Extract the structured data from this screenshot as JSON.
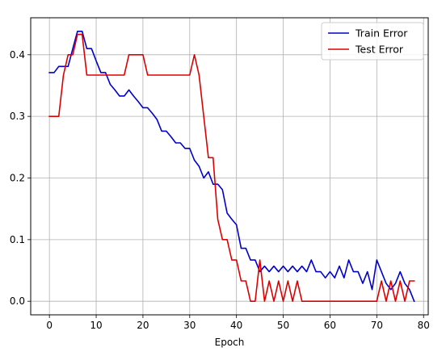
{
  "chart_data": {
    "type": "line",
    "title": "",
    "xlabel": "Epoch",
    "ylabel": "",
    "xlim": [
      -4,
      81
    ],
    "ylim": [
      -0.022,
      0.46
    ],
    "xticks": [
      0,
      10,
      20,
      30,
      40,
      50,
      60,
      70,
      80
    ],
    "yticks": [
      0.0,
      0.1,
      0.2,
      0.3,
      0.4
    ],
    "xtick_labels": [
      "0",
      "10",
      "20",
      "30",
      "40",
      "50",
      "60",
      "70",
      "80"
    ],
    "ytick_labels": [
      "0.0",
      "0.1",
      "0.2",
      "0.3",
      "0.4"
    ],
    "grid": true,
    "legend_position": "top-right",
    "series": [
      {
        "name": "Train Error",
        "color": "#0000cc",
        "x": [
          0,
          1,
          2,
          3,
          4,
          5,
          6,
          7,
          8,
          9,
          10,
          11,
          12,
          13,
          14,
          15,
          16,
          17,
          18,
          19,
          20,
          21,
          22,
          23,
          24,
          25,
          26,
          27,
          28,
          29,
          30,
          31,
          32,
          33,
          34,
          35,
          36,
          37,
          38,
          39,
          40,
          41,
          42,
          43,
          44,
          45,
          46,
          47,
          48,
          49,
          50,
          51,
          52,
          53,
          54,
          55,
          56,
          57,
          58,
          59,
          60,
          61,
          62,
          63,
          64,
          65,
          66,
          67,
          68,
          69,
          70,
          71,
          72,
          73,
          74,
          75,
          76,
          77,
          78
        ],
        "y": [
          0.371,
          0.371,
          0.381,
          0.381,
          0.381,
          0.41,
          0.438,
          0.438,
          0.41,
          0.41,
          0.39,
          0.371,
          0.371,
          0.352,
          0.343,
          0.333,
          0.333,
          0.343,
          0.333,
          0.324,
          0.314,
          0.314,
          0.305,
          0.295,
          0.276,
          0.276,
          0.267,
          0.257,
          0.257,
          0.248,
          0.248,
          0.229,
          0.219,
          0.2,
          0.21,
          0.19,
          0.19,
          0.181,
          0.143,
          0.133,
          0.124,
          0.086,
          0.086,
          0.067,
          0.067,
          0.048,
          0.057,
          0.048,
          0.057,
          0.048,
          0.057,
          0.048,
          0.057,
          0.048,
          0.057,
          0.048,
          0.067,
          0.048,
          0.048,
          0.038,
          0.048,
          0.038,
          0.057,
          0.038,
          0.067,
          0.048,
          0.048,
          0.029,
          0.048,
          0.019,
          0.067,
          0.048,
          0.029,
          0.019,
          0.029,
          0.048,
          0.029,
          0.019,
          0.0
        ]
      },
      {
        "name": "Test Error",
        "color": "#dd0000",
        "x": [
          0,
          1,
          2,
          3,
          4,
          5,
          6,
          7,
          8,
          9,
          10,
          11,
          12,
          13,
          14,
          15,
          16,
          17,
          18,
          19,
          20,
          21,
          22,
          23,
          24,
          25,
          26,
          27,
          28,
          29,
          30,
          31,
          32,
          33,
          34,
          35,
          36,
          37,
          38,
          39,
          40,
          41,
          42,
          43,
          44,
          45,
          46,
          47,
          48,
          49,
          50,
          51,
          52,
          53,
          54,
          55,
          56,
          57,
          58,
          59,
          60,
          61,
          62,
          63,
          64,
          65,
          66,
          67,
          68,
          69,
          70,
          71,
          72,
          73,
          74,
          75,
          76,
          77,
          78
        ],
        "y": [
          0.3,
          0.3,
          0.3,
          0.367,
          0.4,
          0.4,
          0.433,
          0.433,
          0.367,
          0.367,
          0.367,
          0.367,
          0.367,
          0.367,
          0.367,
          0.367,
          0.367,
          0.4,
          0.4,
          0.4,
          0.4,
          0.367,
          0.367,
          0.367,
          0.367,
          0.367,
          0.367,
          0.367,
          0.367,
          0.367,
          0.367,
          0.4,
          0.367,
          0.3,
          0.233,
          0.233,
          0.133,
          0.1,
          0.1,
          0.067,
          0.067,
          0.033,
          0.033,
          0.0,
          0.0,
          0.067,
          0.0,
          0.033,
          0.0,
          0.033,
          0.0,
          0.033,
          0.0,
          0.033,
          0.0,
          0.0,
          0.0,
          0.0,
          0.0,
          0.0,
          0.0,
          0.0,
          0.0,
          0.0,
          0.0,
          0.0,
          0.0,
          0.0,
          0.0,
          0.0,
          0.0,
          0.033,
          0.0,
          0.033,
          0.0,
          0.033,
          0.0,
          0.033,
          0.033
        ]
      }
    ]
  }
}
